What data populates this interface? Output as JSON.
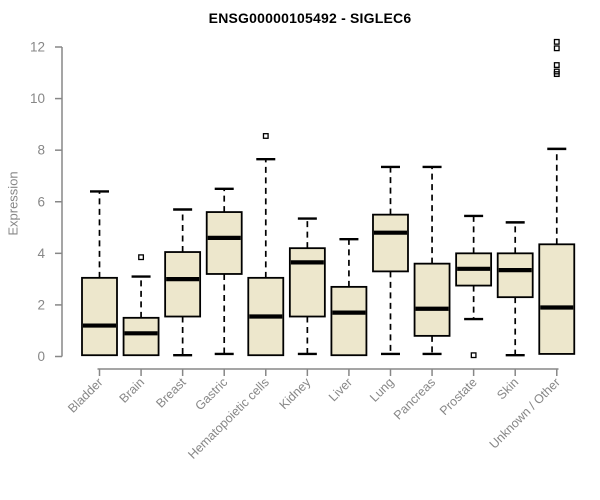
{
  "header": {
    "title": "ENSG00000105492 - SIGLEC6"
  },
  "chart_data": {
    "type": "boxplot",
    "title": "ENSG00000105492 - SIGLEC6",
    "xlabel": "",
    "ylabel": "Expression",
    "ylim": [
      0,
      12
    ],
    "yticks": [
      0,
      2,
      4,
      6,
      8,
      10,
      12
    ],
    "grid": false,
    "legend": "none",
    "axis_color": "#878787",
    "box_fill": "#EDE7CC",
    "box_stroke": "#000000",
    "categories": [
      "Bladder",
      "Brain",
      "Breast",
      "Gastric",
      "Hematopoietic cells",
      "Kidney",
      "Liver",
      "Lung",
      "Pancreas",
      "Prostate",
      "Skin",
      "Unknown / Other"
    ],
    "series": [
      {
        "category": "Bladder",
        "whisker_low": 0.05,
        "q1": 0.05,
        "median": 1.2,
        "q3": 3.05,
        "whisker_high": 6.4,
        "outliers": []
      },
      {
        "category": "Brain",
        "whisker_low": 0.05,
        "q1": 0.05,
        "median": 0.9,
        "q3": 1.5,
        "whisker_high": 3.1,
        "outliers": [
          3.85
        ]
      },
      {
        "category": "Breast",
        "whisker_low": 0.05,
        "q1": 1.55,
        "median": 3.0,
        "q3": 4.05,
        "whisker_high": 5.7,
        "outliers": []
      },
      {
        "category": "Gastric",
        "whisker_low": 0.1,
        "q1": 3.2,
        "median": 4.6,
        "q3": 5.6,
        "whisker_high": 6.5,
        "outliers": []
      },
      {
        "category": "Hematopoietic cells",
        "whisker_low": 0.05,
        "q1": 0.05,
        "median": 1.55,
        "q3": 3.05,
        "whisker_high": 7.65,
        "outliers": [
          8.55
        ]
      },
      {
        "category": "Kidney",
        "whisker_low": 0.1,
        "q1": 1.55,
        "median": 3.65,
        "q3": 4.2,
        "whisker_high": 5.35,
        "outliers": []
      },
      {
        "category": "Liver",
        "whisker_low": 0.05,
        "q1": 0.05,
        "median": 1.7,
        "q3": 2.7,
        "whisker_high": 4.55,
        "outliers": []
      },
      {
        "category": "Lung",
        "whisker_low": 0.1,
        "q1": 3.3,
        "median": 4.8,
        "q3": 5.5,
        "whisker_high": 7.35,
        "outliers": []
      },
      {
        "category": "Pancreas",
        "whisker_low": 0.1,
        "q1": 0.8,
        "median": 1.85,
        "q3": 3.6,
        "whisker_high": 7.35,
        "outliers": []
      },
      {
        "category": "Prostate",
        "whisker_low": 1.45,
        "q1": 2.75,
        "median": 3.4,
        "q3": 4.0,
        "whisker_high": 5.45,
        "outliers": [
          0.05
        ]
      },
      {
        "category": "Skin",
        "whisker_low": 0.05,
        "q1": 2.3,
        "median": 3.35,
        "q3": 4.0,
        "whisker_high": 5.2,
        "outliers": []
      },
      {
        "category": "Unknown / Other",
        "whisker_low": 0.1,
        "q1": 0.1,
        "median": 1.9,
        "q3": 4.35,
        "whisker_high": 8.05,
        "outliers": [
          12.2,
          11.95,
          11.3,
          11.05,
          10.95
        ]
      }
    ]
  }
}
